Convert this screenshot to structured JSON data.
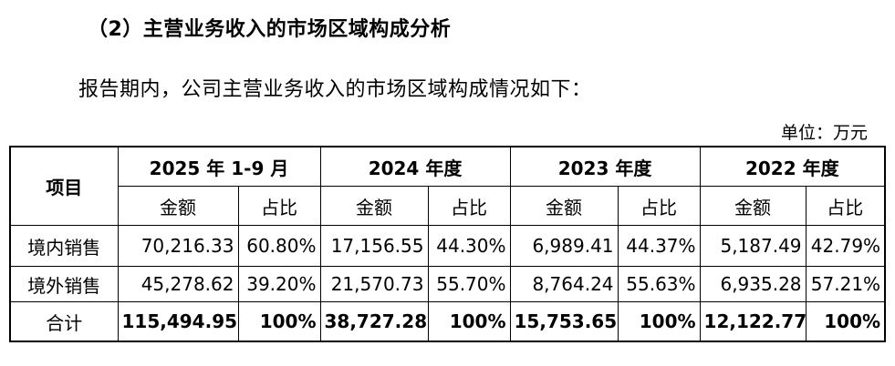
{
  "heading": "（2）主营业务收入的市场区域构成分析",
  "intro": "报告期内，公司主营业务收入的市场区域构成情况如下：",
  "unit": "单位：万元",
  "table": {
    "item_header": "项目",
    "periods": [
      "2025 年 1-9 月",
      "2024 年度",
      "2023 年度",
      "2022 年度"
    ],
    "amount_label": "金额",
    "ratio_label": "占比",
    "rows": [
      {
        "label": "境内销售",
        "cells": [
          {
            "amount": "70,216.33",
            "ratio": "60.80%"
          },
          {
            "amount": "17,156.55",
            "ratio": "44.30%"
          },
          {
            "amount": "6,989.41",
            "ratio": "44.37%"
          },
          {
            "amount": "5,187.49",
            "ratio": "42.79%"
          }
        ]
      },
      {
        "label": "境外销售",
        "cells": [
          {
            "amount": "45,278.62",
            "ratio": "39.20%"
          },
          {
            "amount": "21,570.73",
            "ratio": "55.70%"
          },
          {
            "amount": "8,764.24",
            "ratio": "55.63%"
          },
          {
            "amount": "6,935.28",
            "ratio": "57.21%"
          }
        ]
      },
      {
        "label": "合计",
        "cells": [
          {
            "amount": "115,494.95",
            "ratio": "100%"
          },
          {
            "amount": "38,727.28",
            "ratio": "100%"
          },
          {
            "amount": "15,753.65",
            "ratio": "100%"
          },
          {
            "amount": "12,122.77",
            "ratio": "100%"
          }
        ]
      }
    ]
  }
}
